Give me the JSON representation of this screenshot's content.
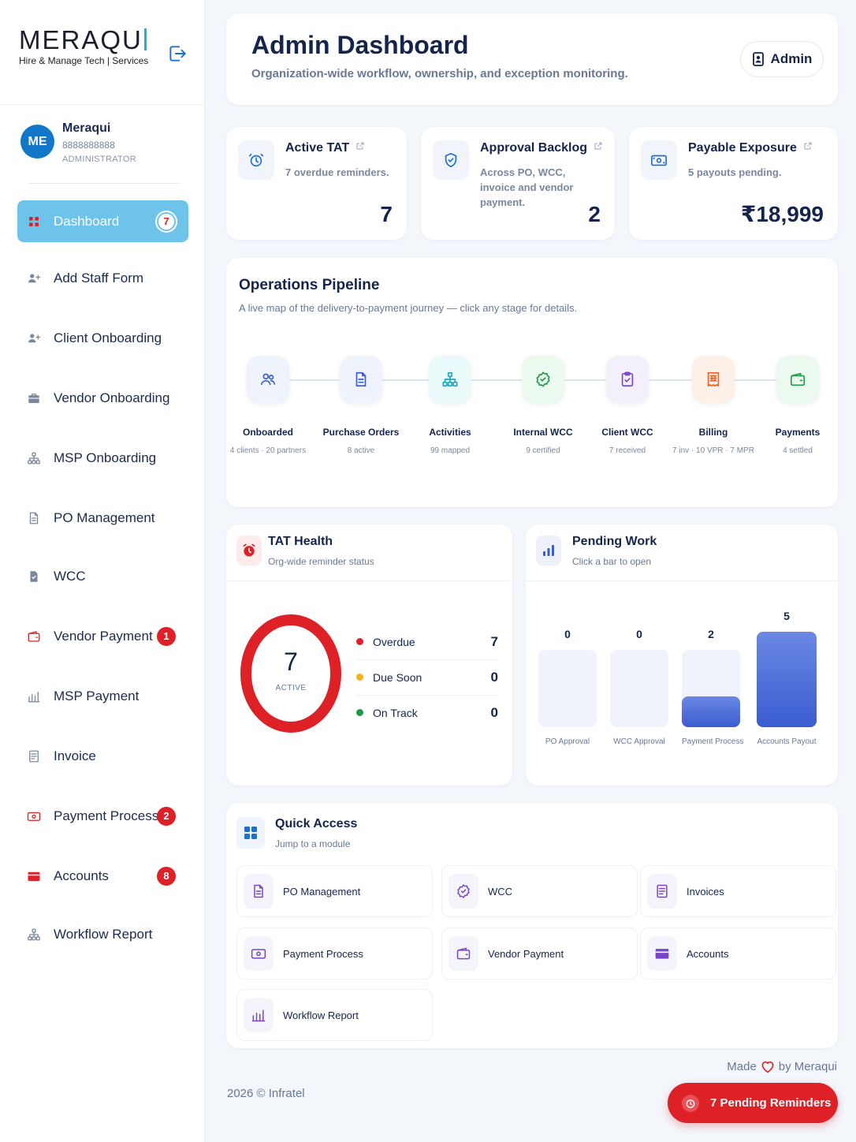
{
  "brand": {
    "name": "MERAQU",
    "tagline": "Hire & Manage Tech | Services"
  },
  "profile": {
    "initials": "ME",
    "name": "Meraqui",
    "phone": "8888888888",
    "role": "ADMINISTRATOR"
  },
  "nav": [
    {
      "label": "Dashboard",
      "icon": "grid-icon",
      "badge": "7",
      "active": true
    },
    {
      "label": "Add Staff Form",
      "icon": "user-plus-icon",
      "badge": ""
    },
    {
      "label": "Client Onboarding",
      "icon": "user-plus-icon",
      "badge": ""
    },
    {
      "label": "Vendor Onboarding",
      "icon": "briefcase-icon",
      "badge": ""
    },
    {
      "label": "MSP Onboarding",
      "icon": "hierarchy-icon",
      "badge": ""
    },
    {
      "label": "PO Management",
      "icon": "document-icon",
      "badge": ""
    },
    {
      "label": "WCC",
      "icon": "check-document-icon",
      "badge": ""
    },
    {
      "label": "Vendor Payment",
      "icon": "wallet-icon",
      "badge": "1"
    },
    {
      "label": "MSP Payment",
      "icon": "bar-chart-icon",
      "badge": ""
    },
    {
      "label": "Invoice",
      "icon": "invoice-icon",
      "badge": ""
    },
    {
      "label": "Payment Process",
      "icon": "cash-icon",
      "badge": "2"
    },
    {
      "label": "Accounts",
      "icon": "card-icon",
      "badge": "8"
    },
    {
      "label": "Workflow Report",
      "icon": "hierarchy-icon",
      "badge": ""
    }
  ],
  "header": {
    "title": "Admin Dashboard",
    "subtitle": "Organization-wide workflow, ownership, and exception monitoring.",
    "user_label": "Admin"
  },
  "stats": [
    {
      "title": "Active TAT",
      "desc": "7 overdue reminders.",
      "value": "7",
      "icon": "alarm-clock-icon"
    },
    {
      "title": "Approval Backlog",
      "desc": "Across PO, WCC, invoice and vendor payment.",
      "value": "2",
      "icon": "shield-icon"
    },
    {
      "title": "Payable Exposure",
      "desc": "5 payouts pending.",
      "value": "₹18,999",
      "icon": "cash-icon"
    }
  ],
  "pipeline": {
    "title": "Operations Pipeline",
    "subtitle": "A live map of the delivery-to-payment journey — click any stage for details.",
    "stages": [
      {
        "name": "Onboarded",
        "meta": "4 clients · 20 partners",
        "icon": "users-icon",
        "color": "#3a5cd0",
        "bg": "#eef3fc"
      },
      {
        "name": "Purchase Orders",
        "meta": "8 active",
        "icon": "document-icon",
        "color": "#3a5cd0",
        "bg": "#eef3fc"
      },
      {
        "name": "Activities",
        "meta": "99 mapped",
        "icon": "hierarchy-icon",
        "color": "#1aa6b8",
        "bg": "#eafafa"
      },
      {
        "name": "Internal WCC",
        "meta": "9 certified",
        "icon": "badge-check-icon",
        "color": "#1f9a4b",
        "bg": "#ebf9ef"
      },
      {
        "name": "Client WCC",
        "meta": "7 received",
        "icon": "clipboard-check-icon",
        "color": "#7a46c9",
        "bg": "#f3effb"
      },
      {
        "name": "Billing",
        "meta": "7 inv · 10 VPR · 7 MPR",
        "icon": "receipt-icon",
        "color": "#e8662a",
        "bg": "#fdf0e8"
      },
      {
        "name": "Payments",
        "meta": "4 settled",
        "icon": "wallet-icon",
        "color": "#1f9a4b",
        "bg": "#ebf9ef"
      }
    ]
  },
  "tat_health": {
    "title": "TAT Health",
    "subtitle": "Org-wide reminder status",
    "total": "7",
    "total_label": "ACTIVE",
    "items": [
      {
        "label": "Overdue",
        "value": "7",
        "color": "#de2027"
      },
      {
        "label": "Due Soon",
        "value": "0",
        "color": "#f2b21c"
      },
      {
        "label": "On Track",
        "value": "0",
        "color": "#1f9a4b"
      }
    ]
  },
  "pending_work": {
    "title": "Pending Work",
    "subtitle": "Click a bar to open",
    "chart_data": {
      "type": "bar",
      "categories": [
        "PO Approval",
        "WCC Approval",
        "Payment Process",
        "Accounts Payout"
      ],
      "values": [
        0,
        0,
        2,
        5
      ],
      "data_labels": [
        "0",
        "0",
        "2",
        "5"
      ]
    }
  },
  "quick_access": {
    "title": "Quick Access",
    "subtitle": "Jump to a module",
    "items": [
      {
        "label": "PO Management",
        "icon": "document-icon",
        "color": "#7a46c9"
      },
      {
        "label": "WCC",
        "icon": "badge-check-icon",
        "color": "#7a46c9"
      },
      {
        "label": "Invoices",
        "icon": "invoice-icon",
        "color": "#7a46c9"
      },
      {
        "label": "Payment Process",
        "icon": "cash-icon",
        "color": "#7a46c9"
      },
      {
        "label": "Vendor Payment",
        "icon": "wallet-icon",
        "color": "#7a46c9"
      },
      {
        "label": "Accounts",
        "icon": "card-icon",
        "color": "#7a46c9"
      },
      {
        "label": "Workflow Report",
        "icon": "bar-chart-icon",
        "color": "#7a46c9"
      }
    ]
  },
  "footer": {
    "made_prefix": "Made",
    "made_suffix": "by Meraqui",
    "copyright": "2026 © Infratel",
    "reminders_button": "7 Pending Reminders"
  },
  "colors": {
    "primary": "#14244d",
    "accent": "#6ec3ea",
    "danger": "#de2027",
    "bar": "#3a5cd0"
  }
}
